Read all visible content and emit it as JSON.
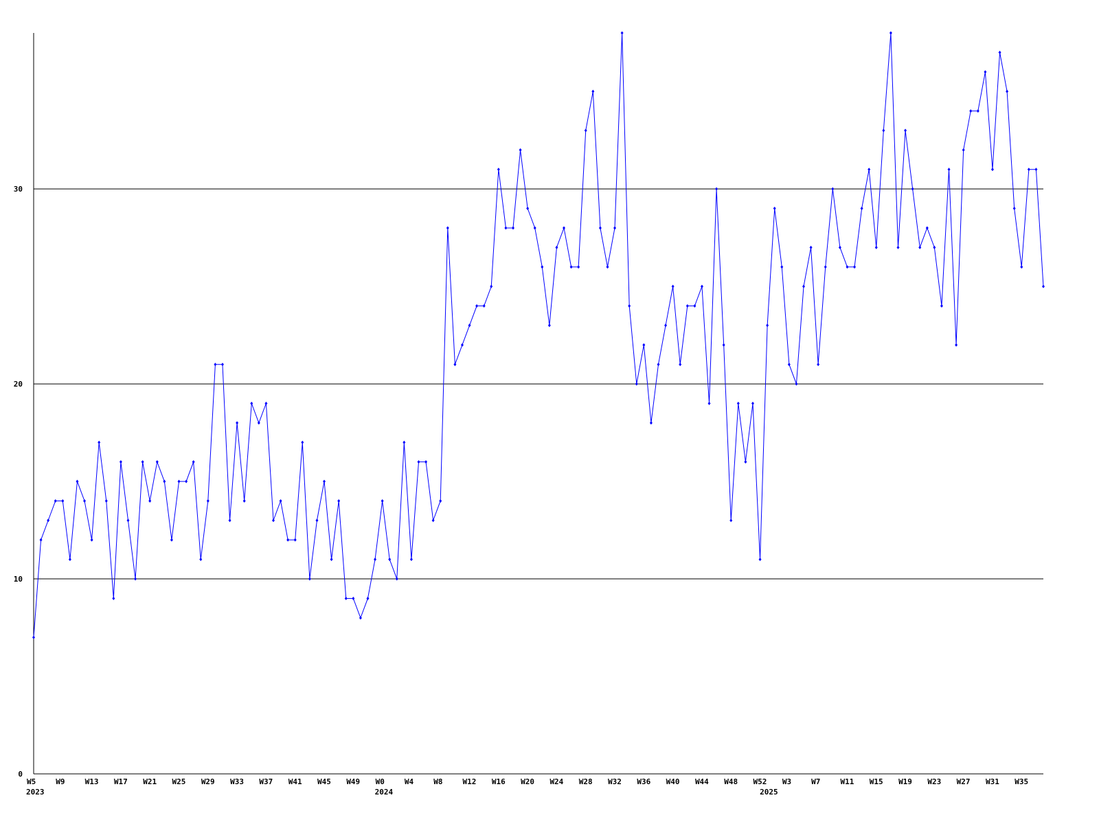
{
  "chart_data": {
    "type": "line",
    "color": "#0000ff",
    "grid": true,
    "ylim": [
      0,
      38
    ],
    "yticks": [
      0,
      10,
      20,
      30
    ],
    "categories": [
      "W5",
      null,
      null,
      null,
      "W9",
      null,
      null,
      null,
      "W13",
      null,
      null,
      null,
      "W17",
      null,
      null,
      null,
      "W21",
      null,
      null,
      null,
      "W25",
      null,
      null,
      null,
      "W29",
      null,
      null,
      null,
      "W33",
      null,
      null,
      null,
      "W37",
      null,
      null,
      null,
      "W41",
      null,
      null,
      null,
      "W45",
      null,
      null,
      null,
      "W49",
      null,
      null,
      null,
      "W0",
      null,
      null,
      null,
      "W4",
      null,
      null,
      null,
      "W8",
      null,
      null,
      null,
      "W12",
      null,
      null,
      null,
      "W16",
      null,
      null,
      null,
      "W20",
      null,
      null,
      null,
      "W24",
      null,
      null,
      null,
      "W28",
      null,
      null,
      null,
      "W32",
      null,
      null,
      null,
      "W36",
      null,
      null,
      null,
      "W40",
      null,
      null,
      null,
      "W44",
      null,
      null,
      null,
      "W48",
      null,
      null,
      null,
      "W52",
      null,
      null,
      null,
      "W3",
      null,
      null,
      null,
      "W7",
      null,
      null,
      null,
      "W11",
      null,
      null,
      null,
      "W15",
      null,
      null,
      null,
      "W19",
      null,
      null,
      null,
      "W23",
      null,
      null,
      null,
      "W27",
      null,
      null,
      null,
      "W31",
      null,
      null,
      null,
      "W35",
      null,
      null,
      null
    ],
    "years": [
      "2023",
      null,
      null,
      null,
      null,
      null,
      null,
      null,
      null,
      null,
      null,
      null,
      null,
      null,
      null,
      null,
      null,
      null,
      null,
      null,
      null,
      null,
      null,
      null,
      null,
      null,
      null,
      null,
      null,
      null,
      null,
      null,
      null,
      null,
      null,
      null,
      null,
      null,
      null,
      null,
      null,
      null,
      null,
      null,
      null,
      null,
      null,
      null,
      "2024",
      null,
      null,
      null,
      null,
      null,
      null,
      null,
      null,
      null,
      null,
      null,
      null,
      null,
      null,
      null,
      null,
      null,
      null,
      null,
      null,
      null,
      null,
      null,
      null,
      null,
      null,
      null,
      null,
      null,
      null,
      null,
      null,
      null,
      null,
      null,
      null,
      null,
      null,
      null,
      null,
      null,
      null,
      null,
      null,
      null,
      null,
      null,
      null,
      null,
      null,
      null,
      null,
      "2025",
      null,
      null,
      null,
      null,
      null,
      null,
      null,
      null,
      null,
      null,
      null,
      null,
      null,
      null,
      null,
      null,
      null,
      null,
      null,
      null,
      null,
      null,
      null,
      null,
      null,
      null,
      null,
      null,
      null,
      null,
      null,
      null,
      null,
      null,
      null,
      null,
      null,
      null
    ],
    "values": [
      7,
      12,
      13,
      14,
      14,
      11,
      15,
      14,
      12,
      17,
      14,
      9,
      16,
      13,
      10,
      16,
      14,
      16,
      15,
      12,
      15,
      15,
      16,
      11,
      14,
      21,
      21,
      13,
      18,
      14,
      19,
      18,
      19,
      13,
      14,
      12,
      12,
      17,
      10,
      13,
      15,
      11,
      14,
      9,
      9,
      8,
      9,
      11,
      14,
      11,
      10,
      17,
      11,
      16,
      16,
      13,
      14,
      28,
      21,
      22,
      23,
      24,
      24,
      25,
      31,
      28,
      28,
      32,
      29,
      28,
      26,
      23,
      27,
      28,
      26,
      26,
      33,
      35,
      28,
      26,
      28,
      38,
      24,
      20,
      22,
      18,
      21,
      23,
      25,
      21,
      24,
      24,
      25,
      19,
      30,
      22,
      13,
      19,
      16,
      19,
      11,
      23,
      29,
      26,
      21,
      20,
      25,
      27,
      21,
      26,
      30,
      27,
      26,
      26,
      29,
      31,
      27,
      33,
      38,
      27,
      33,
      30,
      27,
      28,
      27,
      24,
      31,
      22,
      32,
      34,
      34,
      36,
      31,
      37,
      35,
      29,
      26,
      31,
      31,
      25
    ]
  }
}
